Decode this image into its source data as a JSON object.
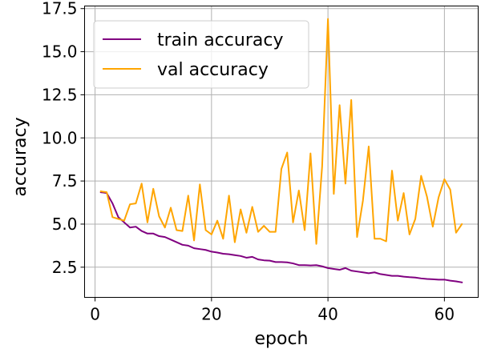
{
  "chart_data": {
    "type": "line",
    "title": "",
    "xlabel": "epoch",
    "ylabel": "accuracy",
    "xlim": [
      -1.8,
      65.8
    ],
    "ylim": [
      0.75,
      17.65
    ],
    "xticks": [
      0,
      20,
      40,
      60
    ],
    "xtick_labels": [
      "0",
      "20",
      "40",
      "60"
    ],
    "yticks": [
      2.5,
      5.0,
      7.5,
      10.0,
      12.5,
      15.0,
      17.5
    ],
    "ytick_labels": [
      "2.5",
      "5.0",
      "7.5",
      "10.0",
      "12.5",
      "15.0",
      "17.5"
    ],
    "grid": true,
    "legend_position": "top-left",
    "x": [
      1,
      2,
      3,
      4,
      5,
      6,
      7,
      8,
      9,
      10,
      11,
      12,
      13,
      14,
      15,
      16,
      17,
      18,
      19,
      20,
      21,
      22,
      23,
      24,
      25,
      26,
      27,
      28,
      29,
      30,
      31,
      32,
      33,
      34,
      35,
      36,
      37,
      38,
      39,
      40,
      41,
      42,
      43,
      44,
      45,
      46,
      47,
      48,
      49,
      50,
      51,
      52,
      53,
      54,
      55,
      56,
      57,
      58,
      59,
      60,
      61,
      62,
      63
    ],
    "series": [
      {
        "name": "train accuracy",
        "color": "#800080",
        "values": [
          6.85,
          6.8,
          6.2,
          5.4,
          5.1,
          4.8,
          4.85,
          4.6,
          4.45,
          4.45,
          4.3,
          4.25,
          4.1,
          3.95,
          3.8,
          3.75,
          3.6,
          3.55,
          3.5,
          3.4,
          3.35,
          3.28,
          3.25,
          3.2,
          3.15,
          3.05,
          3.1,
          2.95,
          2.9,
          2.88,
          2.8,
          2.8,
          2.78,
          2.72,
          2.62,
          2.62,
          2.6,
          2.62,
          2.55,
          2.45,
          2.4,
          2.35,
          2.45,
          2.3,
          2.25,
          2.2,
          2.15,
          2.2,
          2.1,
          2.05,
          2.0,
          2.0,
          1.95,
          1.92,
          1.9,
          1.85,
          1.82,
          1.8,
          1.78,
          1.78,
          1.72,
          1.68,
          1.62
        ]
      },
      {
        "name": "val accuracy",
        "color": "#FFA500",
        "values": [
          6.9,
          6.85,
          5.4,
          5.3,
          5.2,
          6.15,
          6.2,
          7.35,
          5.1,
          7.05,
          5.45,
          4.8,
          5.95,
          4.65,
          4.6,
          6.65,
          4.05,
          7.3,
          4.65,
          4.4,
          5.2,
          4.15,
          6.65,
          3.95,
          5.85,
          4.5,
          6.0,
          4.55,
          4.9,
          4.55,
          4.55,
          8.2,
          9.15,
          5.1,
          6.95,
          4.65,
          9.1,
          3.85,
          8.35,
          16.9,
          6.75,
          11.9,
          7.35,
          12.2,
          4.25,
          6.35,
          9.5,
          4.15,
          4.15,
          4.0,
          8.1,
          5.2,
          6.8,
          4.4,
          5.3,
          7.8,
          6.6,
          4.85,
          6.55,
          7.6,
          7.0,
          4.5,
          5.0
        ]
      }
    ]
  }
}
